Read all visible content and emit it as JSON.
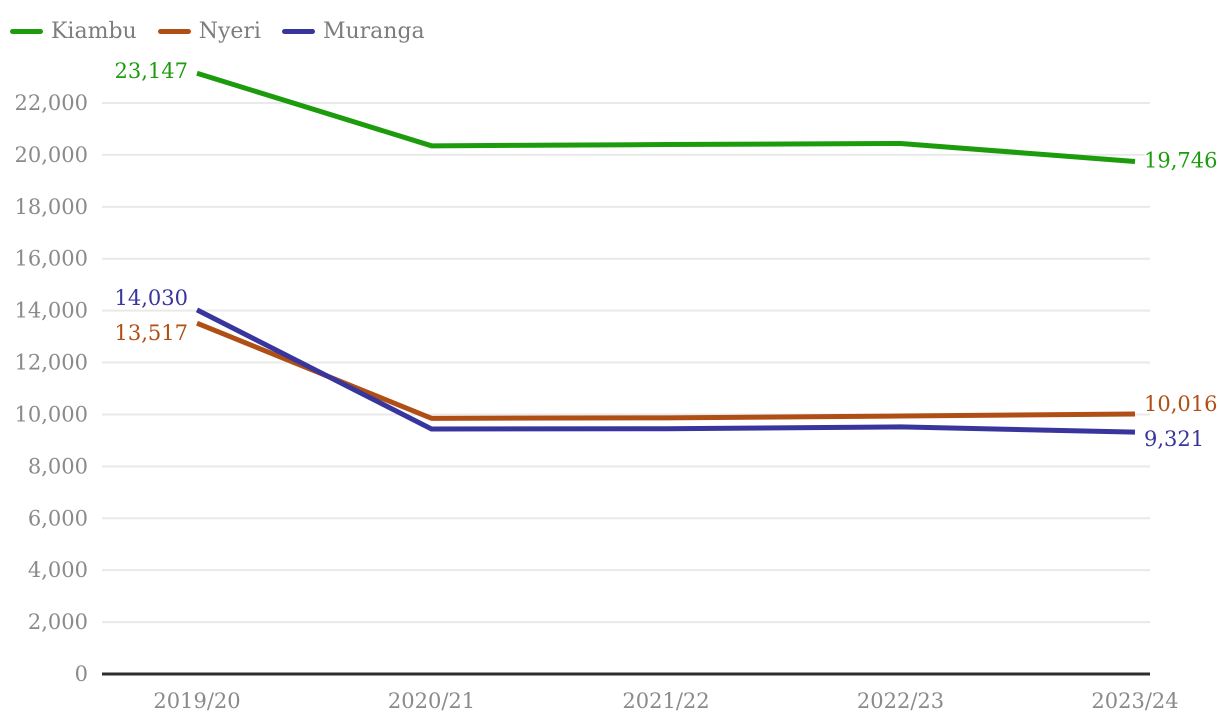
{
  "chart_data": {
    "type": "line",
    "title": "",
    "x_categories": [
      "2019/20",
      "2020/21",
      "2021/22",
      "2022/23",
      "2023/24"
    ],
    "series": [
      {
        "name": "Kiambu",
        "color": "#1c9c0c",
        "values": [
          23147,
          20350,
          20400,
          20440,
          19746
        ],
        "start_label": "23,147",
        "end_label": "19,746"
      },
      {
        "name": "Nyeri",
        "color": "#b04f15",
        "values": [
          13517,
          9850,
          9870,
          9940,
          10016
        ],
        "start_label": "13,517",
        "end_label": "10,016"
      },
      {
        "name": "Muranga",
        "color": "#38359c",
        "values": [
          14030,
          9440,
          9450,
          9520,
          9321
        ],
        "start_label": "14,030",
        "end_label": "9,321"
      }
    ],
    "y_ticks": [
      {
        "value": 0,
        "label": "0"
      },
      {
        "value": 2000,
        "label": "2,000"
      },
      {
        "value": 4000,
        "label": "4,000"
      },
      {
        "value": 6000,
        "label": "6,000"
      },
      {
        "value": 8000,
        "label": "8,000"
      },
      {
        "value": 10000,
        "label": "10,000"
      },
      {
        "value": 12000,
        "label": "12,000"
      },
      {
        "value": 14000,
        "label": "14,000"
      },
      {
        "value": 16000,
        "label": "16,000"
      },
      {
        "value": 18000,
        "label": "18,000"
      },
      {
        "value": 20000,
        "label": "20,000"
      },
      {
        "value": 22000,
        "label": "22,000"
      }
    ],
    "ylim": [
      0,
      23200
    ],
    "grid": "horizontal",
    "legend_position": "top-left"
  },
  "colors": {
    "axis_text": "#8a8a8a",
    "legend_text": "#7d7d7d",
    "gridline": "#e9e9e9",
    "axis_line": "#2e2e2e",
    "background": "#ffffff",
    "label_halo": "#ffffff"
  }
}
